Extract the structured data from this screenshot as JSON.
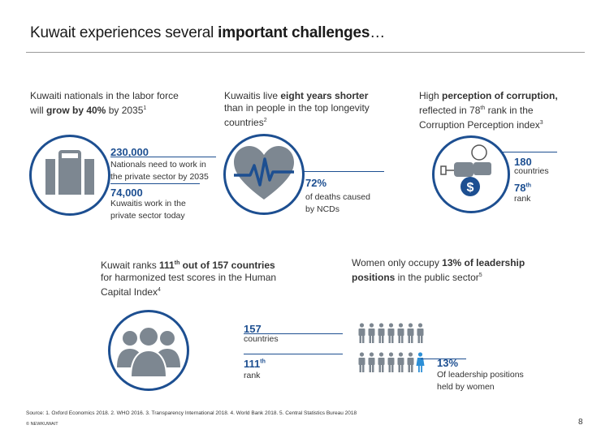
{
  "title": {
    "pre": "Kuwait experiences several ",
    "bold": "important challenges",
    "post": "…"
  },
  "col1": {
    "line1": "Kuwaiti nationals in the labor force",
    "line2_pre": "will ",
    "line2_bold": "grow by 40%",
    "line2_post": " by 2035",
    "sup": "1"
  },
  "col2": {
    "line1_pre": "Kuwaitis live ",
    "line1_bold": "eight years shorter",
    "line2": "than in people in the top longevity",
    "line3": "countries",
    "sup": "2"
  },
  "col3": {
    "line1_pre": "High ",
    "line1_bold": "perception of corruption,",
    "line2_pre": "reflected in 78",
    "line2_sup": "th",
    "line2_post": " rank in the",
    "line3": "Corruption Perception index",
    "sup": "3"
  },
  "labor": {
    "need_value": "230,000",
    "need_label1": "Nationals need to work in",
    "need_label2": "the private sector by 2035",
    "today_value": "74,000",
    "today_label1": "Kuwaitis work in the",
    "today_label2": "private sector today"
  },
  "health": {
    "value": "72%",
    "label1": "of deaths caused",
    "label2": "by NCDs"
  },
  "corruption": {
    "countries_value": "180",
    "countries_label": "countries",
    "rank_value": "78",
    "rank_sup": "th",
    "rank_label": "rank"
  },
  "education": {
    "line1_pre": "Kuwait ranks ",
    "line1_bold": "111",
    "line1_sup": "th",
    "line1_bold2": " out of 157 countries",
    "line2": "for harmonized test scores in the Human",
    "line3": "Capital Index",
    "sup": "4",
    "countries_value": "157",
    "countries_label": "countries",
    "rank_value": "111",
    "rank_sup": "th",
    "rank_label": "rank"
  },
  "women": {
    "line1_pre": "Women only occupy ",
    "line1_bold": "13% of leadership",
    "line2_bold": "positions",
    "line2_post": " in the public sector",
    "sup": "5",
    "value": "13%",
    "label1": "Of leadership positions",
    "label2": "held by women"
  },
  "footer": {
    "sources": "Source: 1. Oxford Economics 2018. 2. WHO 2016. 3. Transparency International 2018. 4. World Bank 2018. 5. Central Statistics Bureau 2018",
    "copyright": "© NEWKUWAIT",
    "page": "8"
  },
  "colors": {
    "accent": "#1d4f91",
    "icon_grey": "#7d8791",
    "female": "#2c8fd6"
  }
}
